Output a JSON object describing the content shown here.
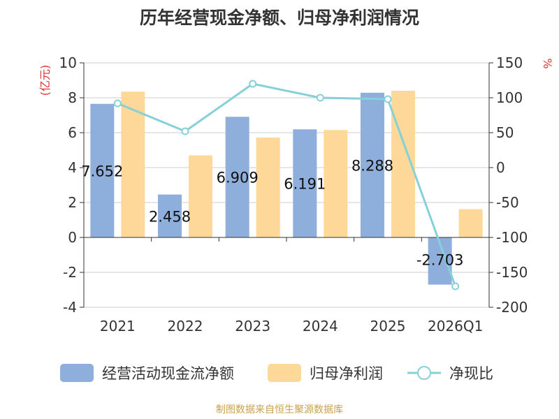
{
  "chart_data": {
    "type": "bar",
    "title": "历年经营现金净额、归母净利润情况",
    "left_unit": "(亿元)",
    "right_unit": "%",
    "source": "制图数据来自恒生聚源数据库",
    "categories": [
      "2021",
      "2022",
      "2023",
      "2024",
      "2025",
      "2026Q1"
    ],
    "left_ylim": [
      -4,
      10
    ],
    "left_ticks": [
      "10",
      "8",
      "6",
      "4",
      "2",
      "0",
      "-2",
      "-4"
    ],
    "right_ylim": [
      -200,
      150
    ],
    "right_ticks": [
      "150",
      "100",
      "50",
      "0",
      "-50",
      "-100",
      "-150",
      "-200"
    ],
    "grid": true,
    "legend_position": "bottom",
    "series": [
      {
        "name": "经营活动现金流净额",
        "kind": "bar",
        "axis": "left",
        "color": "#8eaedb",
        "values": [
          7.652,
          2.458,
          6.909,
          6.191,
          8.288,
          -2.703
        ],
        "labels": [
          "7.652",
          "2.458",
          "6.909",
          "6.191",
          "8.288",
          "-2.703"
        ]
      },
      {
        "name": "归母净利润",
        "kind": "bar",
        "axis": "left",
        "color": "#fdd898",
        "values": [
          8.35,
          4.7,
          5.72,
          6.15,
          8.4,
          1.62
        ]
      },
      {
        "name": "净现比",
        "kind": "line",
        "axis": "right",
        "color": "#86d1d8",
        "values": [
          92,
          52,
          120,
          100,
          98,
          -170
        ]
      }
    ]
  }
}
